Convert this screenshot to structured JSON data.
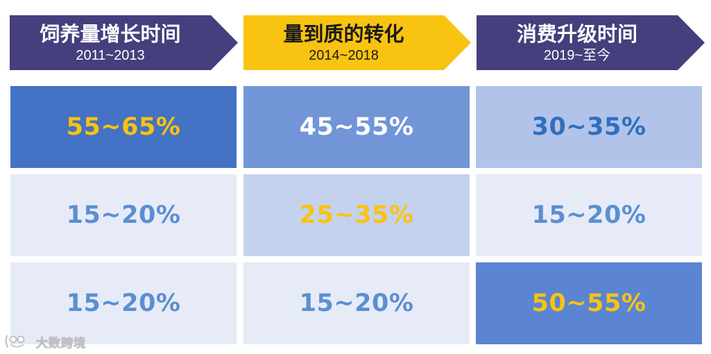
{
  "headers": [
    {
      "title": "饲养量增长时间",
      "subtitle": "2011~2013"
    },
    {
      "title": "量到质的转化",
      "subtitle": "2014~2018"
    },
    {
      "title": "消费升级时间",
      "subtitle": "2019~至今"
    }
  ],
  "rows": [
    [
      {
        "value": "55~65%",
        "bg": "#4472c4",
        "color": "#f9c311"
      },
      {
        "value": "45~55%",
        "bg": "#7295d8",
        "color": "#ffffff"
      },
      {
        "value": "30~35%",
        "bg": "#b1c3e9",
        "color": "#2f6fbf"
      }
    ],
    [
      {
        "value": "15~20%",
        "bg": "#e6ebf7",
        "color": "#5b8fd1"
      },
      {
        "value": "25~35%",
        "bg": "#c5d2ee",
        "color": "#f9c311"
      },
      {
        "value": "15~20%",
        "bg": "#e6ebf7",
        "color": "#5b8fd1"
      }
    ],
    [
      {
        "value": "15~20%",
        "bg": "#e6ebf7",
        "color": "#5b8fd1"
      },
      {
        "value": "15~20%",
        "bg": "#e6ebf7",
        "color": "#5b8fd1"
      },
      {
        "value": "50~55%",
        "bg": "#5b85d2",
        "color": "#f9c311"
      }
    ]
  ],
  "watermark": {
    "text": "大数跨境",
    "icon": "logo-icon"
  }
}
